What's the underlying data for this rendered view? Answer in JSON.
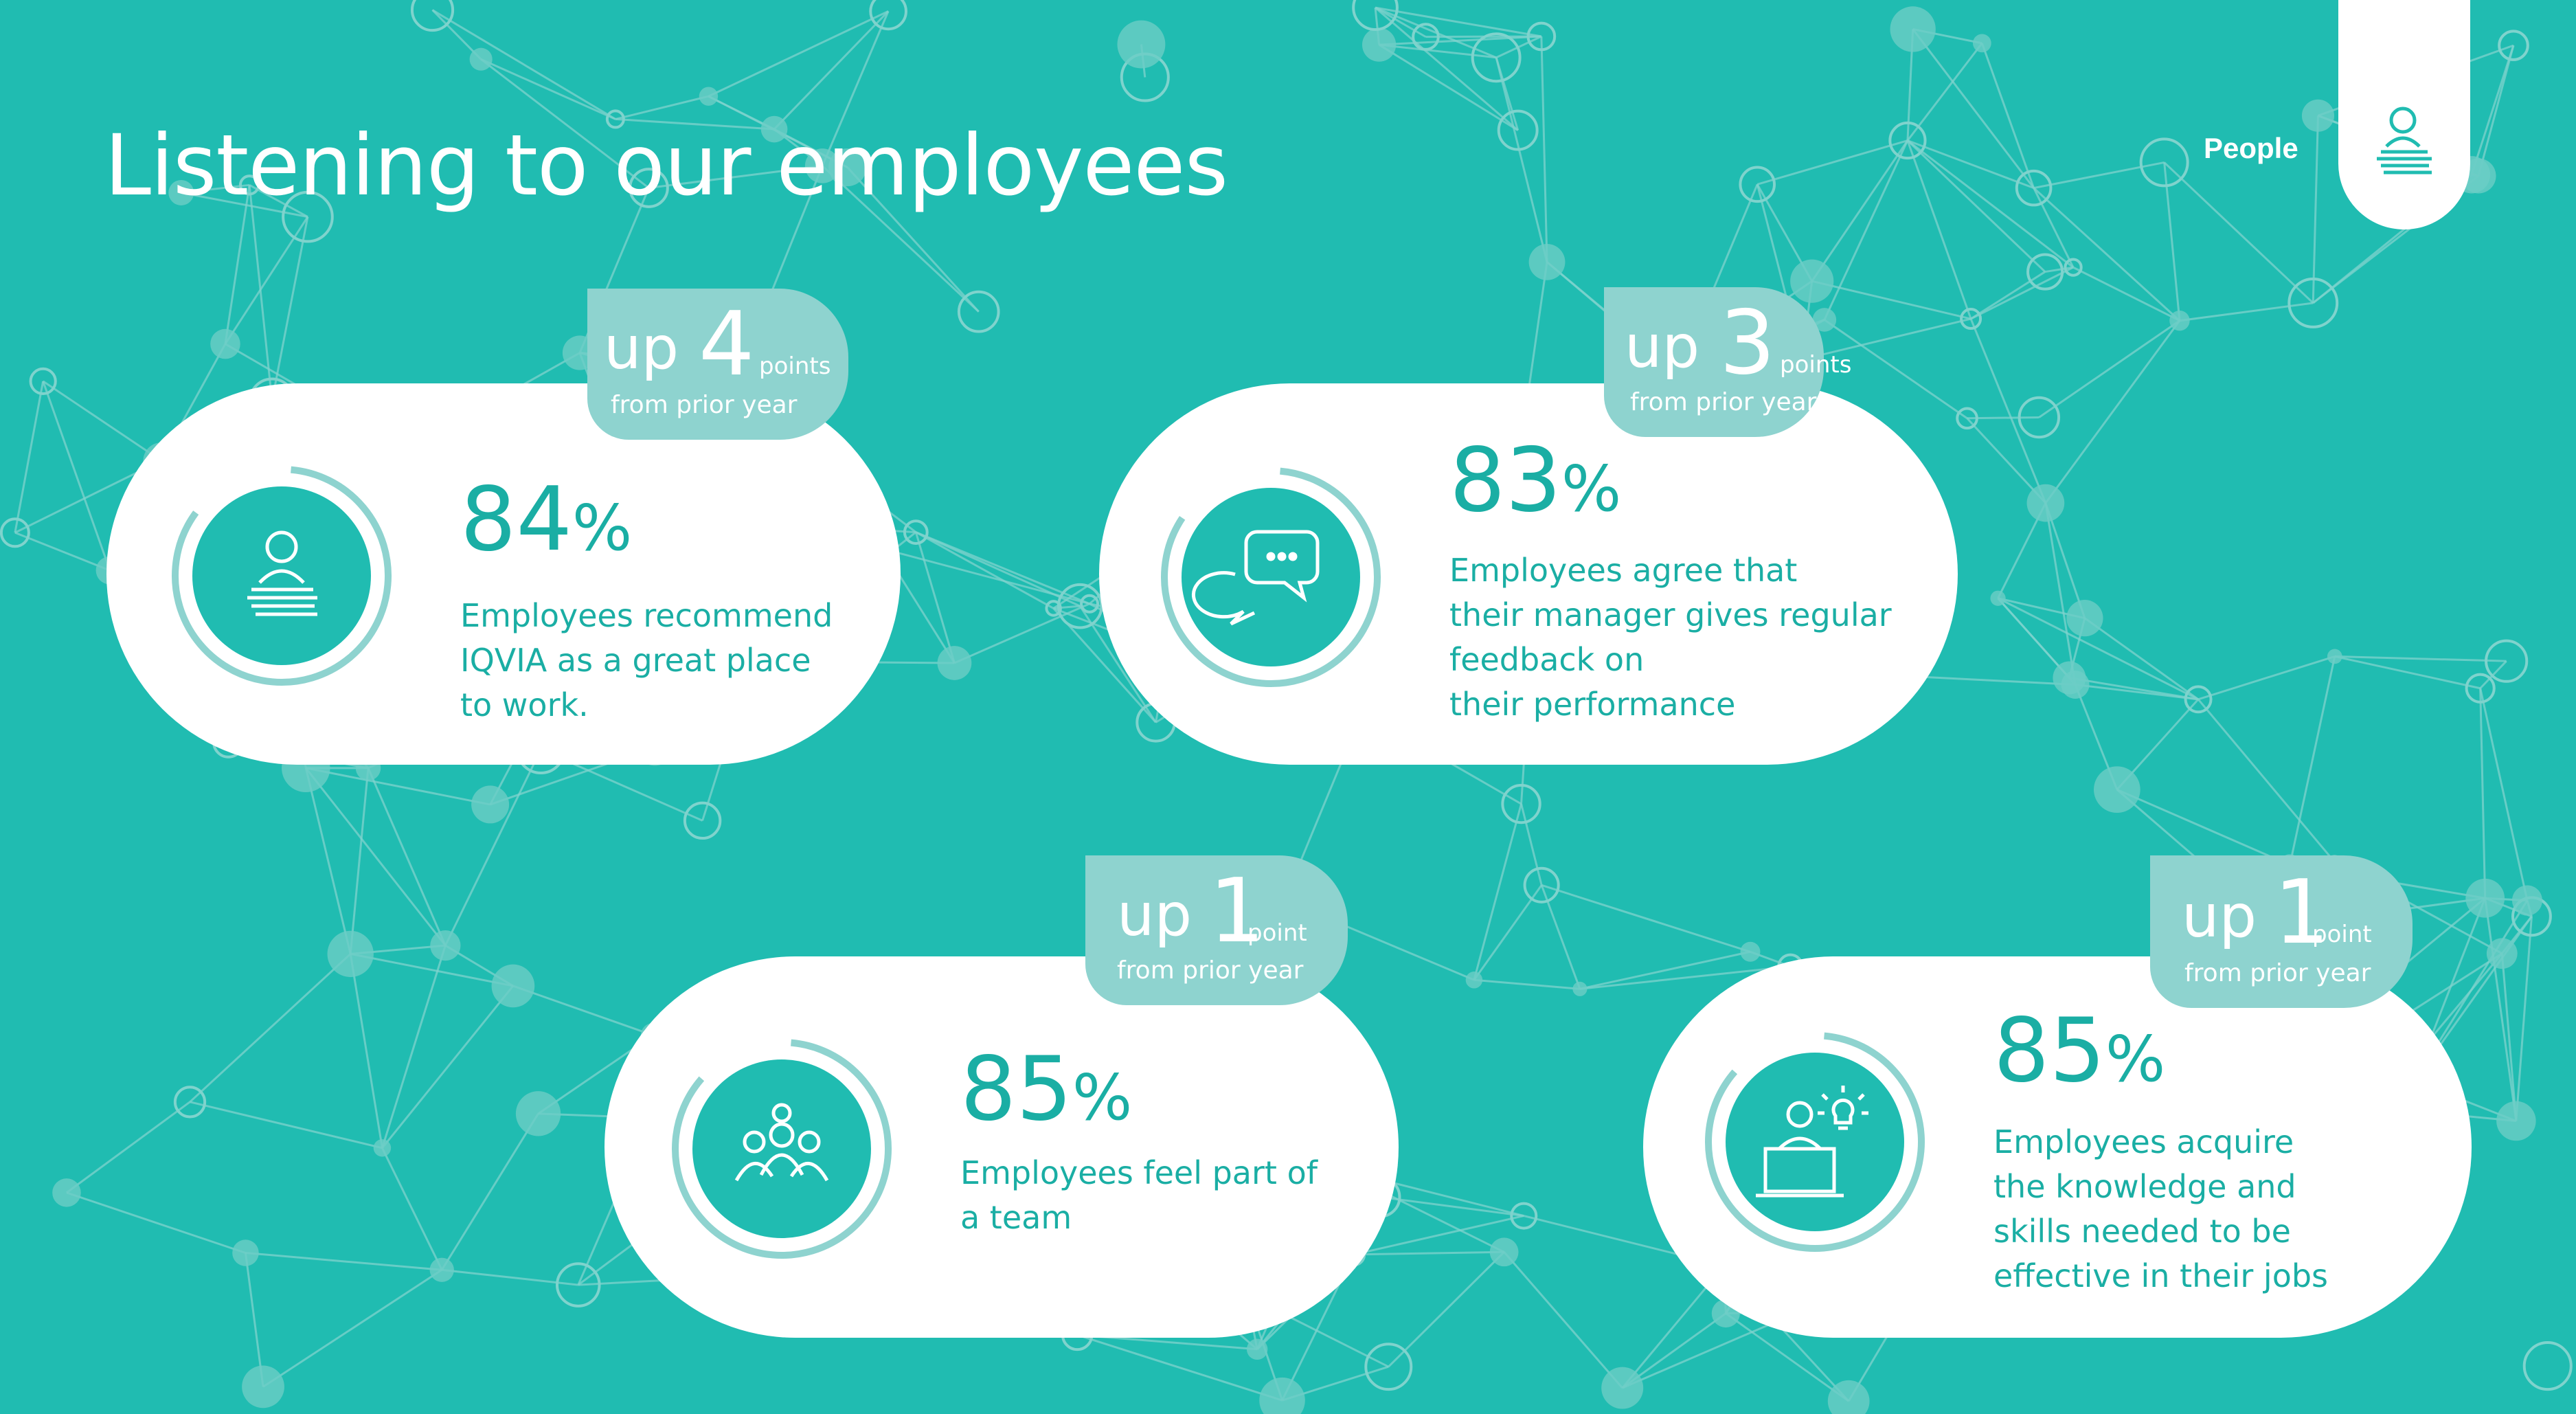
{
  "page": {
    "title": "Listening to our employees"
  },
  "section_tab": {
    "label": "People",
    "icon": "person-document-icon"
  },
  "colors": {
    "background": "#20bcb1",
    "accent": "#1aaea4",
    "badge": "#8ed3cf",
    "ring": "#8ed3cf"
  },
  "stats": [
    {
      "badge": {
        "prefix": "up",
        "amount": "4",
        "unit": "points",
        "note": "from prior year"
      },
      "percent": "84",
      "percent_symbol": "%",
      "description": "Employees recommend\nIQVIA as a great place\nto work.",
      "icon": "person-document-icon"
    },
    {
      "badge": {
        "prefix": "up",
        "amount": "3",
        "unit": "points",
        "note": "from prior year"
      },
      "percent": "83",
      "percent_symbol": "%",
      "description": "Employees agree that\ntheir manager gives regular\nfeedback on\ntheir performance",
      "icon": "chat-bubbles-icon"
    },
    {
      "badge": {
        "prefix": "up",
        "amount": "1",
        "unit": "point",
        "note": "from prior year"
      },
      "percent": "85",
      "percent_symbol": "%",
      "description": "Employees feel part of\na team",
      "icon": "team-icon"
    },
    {
      "badge": {
        "prefix": "up",
        "amount": "1",
        "unit": "point",
        "note": "from prior year"
      },
      "percent": "85",
      "percent_symbol": "%",
      "description": "Employees acquire\nthe knowledge and\nskills needed to be\neffective in their jobs",
      "icon": "person-laptop-idea-icon"
    }
  ]
}
